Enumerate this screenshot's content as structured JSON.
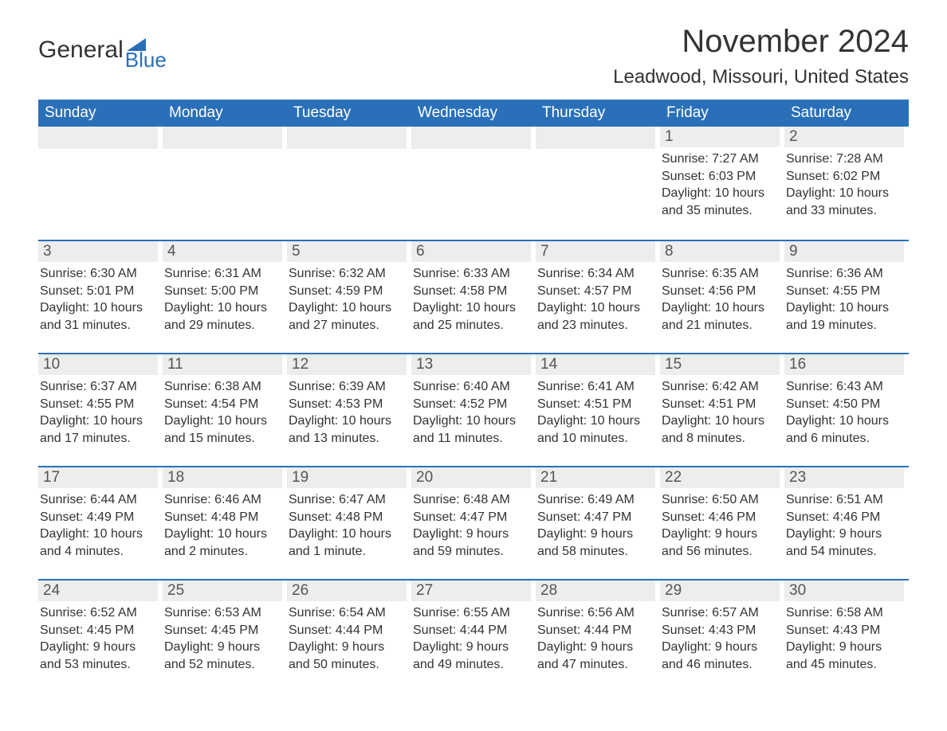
{
  "logo": {
    "text1": "General",
    "text2": "Blue"
  },
  "title": "November 2024",
  "location": "Leadwood, Missouri, United States",
  "colors": {
    "header_bg": "#2a70b8",
    "header_text": "#ffffff",
    "day_bar_bg": "#ededed",
    "text": "#333333",
    "border": "#2a70b8"
  },
  "weekdays": [
    "Sunday",
    "Monday",
    "Tuesday",
    "Wednesday",
    "Thursday",
    "Friday",
    "Saturday"
  ],
  "weeks": [
    [
      null,
      null,
      null,
      null,
      null,
      {
        "day": "1",
        "sunrise": "Sunrise: 7:27 AM",
        "sunset": "Sunset: 6:03 PM",
        "daylight": "Daylight: 10 hours and 35 minutes."
      },
      {
        "day": "2",
        "sunrise": "Sunrise: 7:28 AM",
        "sunset": "Sunset: 6:02 PM",
        "daylight": "Daylight: 10 hours and 33 minutes."
      }
    ],
    [
      {
        "day": "3",
        "sunrise": "Sunrise: 6:30 AM",
        "sunset": "Sunset: 5:01 PM",
        "daylight": "Daylight: 10 hours and 31 minutes."
      },
      {
        "day": "4",
        "sunrise": "Sunrise: 6:31 AM",
        "sunset": "Sunset: 5:00 PM",
        "daylight": "Daylight: 10 hours and 29 minutes."
      },
      {
        "day": "5",
        "sunrise": "Sunrise: 6:32 AM",
        "sunset": "Sunset: 4:59 PM",
        "daylight": "Daylight: 10 hours and 27 minutes."
      },
      {
        "day": "6",
        "sunrise": "Sunrise: 6:33 AM",
        "sunset": "Sunset: 4:58 PM",
        "daylight": "Daylight: 10 hours and 25 minutes."
      },
      {
        "day": "7",
        "sunrise": "Sunrise: 6:34 AM",
        "sunset": "Sunset: 4:57 PM",
        "daylight": "Daylight: 10 hours and 23 minutes."
      },
      {
        "day": "8",
        "sunrise": "Sunrise: 6:35 AM",
        "sunset": "Sunset: 4:56 PM",
        "daylight": "Daylight: 10 hours and 21 minutes."
      },
      {
        "day": "9",
        "sunrise": "Sunrise: 6:36 AM",
        "sunset": "Sunset: 4:55 PM",
        "daylight": "Daylight: 10 hours and 19 minutes."
      }
    ],
    [
      {
        "day": "10",
        "sunrise": "Sunrise: 6:37 AM",
        "sunset": "Sunset: 4:55 PM",
        "daylight": "Daylight: 10 hours and 17 minutes."
      },
      {
        "day": "11",
        "sunrise": "Sunrise: 6:38 AM",
        "sunset": "Sunset: 4:54 PM",
        "daylight": "Daylight: 10 hours and 15 minutes."
      },
      {
        "day": "12",
        "sunrise": "Sunrise: 6:39 AM",
        "sunset": "Sunset: 4:53 PM",
        "daylight": "Daylight: 10 hours and 13 minutes."
      },
      {
        "day": "13",
        "sunrise": "Sunrise: 6:40 AM",
        "sunset": "Sunset: 4:52 PM",
        "daylight": "Daylight: 10 hours and 11 minutes."
      },
      {
        "day": "14",
        "sunrise": "Sunrise: 6:41 AM",
        "sunset": "Sunset: 4:51 PM",
        "daylight": "Daylight: 10 hours and 10 minutes."
      },
      {
        "day": "15",
        "sunrise": "Sunrise: 6:42 AM",
        "sunset": "Sunset: 4:51 PM",
        "daylight": "Daylight: 10 hours and 8 minutes."
      },
      {
        "day": "16",
        "sunrise": "Sunrise: 6:43 AM",
        "sunset": "Sunset: 4:50 PM",
        "daylight": "Daylight: 10 hours and 6 minutes."
      }
    ],
    [
      {
        "day": "17",
        "sunrise": "Sunrise: 6:44 AM",
        "sunset": "Sunset: 4:49 PM",
        "daylight": "Daylight: 10 hours and 4 minutes."
      },
      {
        "day": "18",
        "sunrise": "Sunrise: 6:46 AM",
        "sunset": "Sunset: 4:48 PM",
        "daylight": "Daylight: 10 hours and 2 minutes."
      },
      {
        "day": "19",
        "sunrise": "Sunrise: 6:47 AM",
        "sunset": "Sunset: 4:48 PM",
        "daylight": "Daylight: 10 hours and 1 minute."
      },
      {
        "day": "20",
        "sunrise": "Sunrise: 6:48 AM",
        "sunset": "Sunset: 4:47 PM",
        "daylight": "Daylight: 9 hours and 59 minutes."
      },
      {
        "day": "21",
        "sunrise": "Sunrise: 6:49 AM",
        "sunset": "Sunset: 4:47 PM",
        "daylight": "Daylight: 9 hours and 58 minutes."
      },
      {
        "day": "22",
        "sunrise": "Sunrise: 6:50 AM",
        "sunset": "Sunset: 4:46 PM",
        "daylight": "Daylight: 9 hours and 56 minutes."
      },
      {
        "day": "23",
        "sunrise": "Sunrise: 6:51 AM",
        "sunset": "Sunset: 4:46 PM",
        "daylight": "Daylight: 9 hours and 54 minutes."
      }
    ],
    [
      {
        "day": "24",
        "sunrise": "Sunrise: 6:52 AM",
        "sunset": "Sunset: 4:45 PM",
        "daylight": "Daylight: 9 hours and 53 minutes."
      },
      {
        "day": "25",
        "sunrise": "Sunrise: 6:53 AM",
        "sunset": "Sunset: 4:45 PM",
        "daylight": "Daylight: 9 hours and 52 minutes."
      },
      {
        "day": "26",
        "sunrise": "Sunrise: 6:54 AM",
        "sunset": "Sunset: 4:44 PM",
        "daylight": "Daylight: 9 hours and 50 minutes."
      },
      {
        "day": "27",
        "sunrise": "Sunrise: 6:55 AM",
        "sunset": "Sunset: 4:44 PM",
        "daylight": "Daylight: 9 hours and 49 minutes."
      },
      {
        "day": "28",
        "sunrise": "Sunrise: 6:56 AM",
        "sunset": "Sunset: 4:44 PM",
        "daylight": "Daylight: 9 hours and 47 minutes."
      },
      {
        "day": "29",
        "sunrise": "Sunrise: 6:57 AM",
        "sunset": "Sunset: 4:43 PM",
        "daylight": "Daylight: 9 hours and 46 minutes."
      },
      {
        "day": "30",
        "sunrise": "Sunrise: 6:58 AM",
        "sunset": "Sunset: 4:43 PM",
        "daylight": "Daylight: 9 hours and 45 minutes."
      }
    ]
  ]
}
